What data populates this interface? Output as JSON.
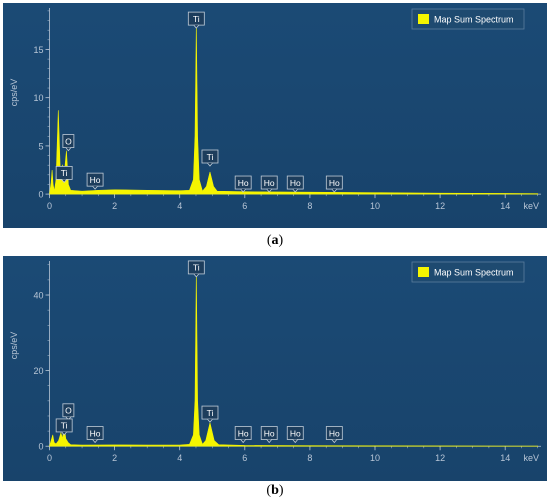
{
  "captions": [
    {
      "open": "(",
      "letter": "a",
      "close": ")"
    },
    {
      "open": "(",
      "letter": "b",
      "close": ")"
    }
  ],
  "colors": {
    "background": "#18436b",
    "spectrum": "#f5f500",
    "axis_text": "#b8c6d6",
    "label_box_bg": "#1d3d5c",
    "label_box_border": "#c0ccd8"
  },
  "chart_data": [
    {
      "type": "area",
      "panel": "a",
      "ylabel": "cps/eV",
      "xunit": "keV",
      "legend": {
        "label": "Map Sum Spectrum",
        "position": "top-right"
      },
      "grid": false,
      "xlim": [
        -0.2,
        15.1
      ],
      "ylim": [
        -0.3,
        19.3
      ],
      "xticks": [
        0,
        2,
        4,
        6,
        8,
        10,
        12,
        14
      ],
      "yticks": [
        0,
        5,
        10,
        15
      ],
      "series": [
        {
          "name": "Map Sum Spectrum",
          "points": [
            [
              0.0,
              0.0
            ],
            [
              0.05,
              1.2
            ],
            [
              0.08,
              2.5
            ],
            [
              0.11,
              1.0
            ],
            [
              0.15,
              0.3
            ],
            [
              0.2,
              1.5
            ],
            [
              0.27,
              8.7
            ],
            [
              0.33,
              2.5
            ],
            [
              0.4,
              3.0
            ],
            [
              0.45,
              2.0
            ],
            [
              0.52,
              4.5
            ],
            [
              0.58,
              1.0
            ],
            [
              0.65,
              0.4
            ],
            [
              1.0,
              0.3
            ],
            [
              1.5,
              0.4
            ],
            [
              2.0,
              0.45
            ],
            [
              3.0,
              0.4
            ],
            [
              4.0,
              0.35
            ],
            [
              4.3,
              0.4
            ],
            [
              4.42,
              1.5
            ],
            [
              4.47,
              6.0
            ],
            [
              4.51,
              17.6
            ],
            [
              4.55,
              6.0
            ],
            [
              4.6,
              1.5
            ],
            [
              4.7,
              0.3
            ],
            [
              4.82,
              0.8
            ],
            [
              4.93,
              2.3
            ],
            [
              5.04,
              0.8
            ],
            [
              5.15,
              0.3
            ],
            [
              6.0,
              0.25
            ],
            [
              8.0,
              0.2
            ],
            [
              10.0,
              0.15
            ],
            [
              12.0,
              0.1
            ],
            [
              15.0,
              0.05
            ]
          ]
        }
      ],
      "annotations": [
        {
          "text": "Ti",
          "x": 4.51,
          "y": 18.2
        },
        {
          "text": "Ti",
          "x": 4.93,
          "y": 3.9
        },
        {
          "text": "O",
          "x": 0.58,
          "y": 5.5
        },
        {
          "text": "Ti",
          "x": 0.45,
          "y": 2.2
        },
        {
          "text": "Ho",
          "x": 1.4,
          "y": 1.5
        },
        {
          "text": "Ho",
          "x": 5.95,
          "y": 1.2
        },
        {
          "text": "Ho",
          "x": 6.75,
          "y": 1.2
        },
        {
          "text": "Ho",
          "x": 7.55,
          "y": 1.2
        },
        {
          "text": "Ho",
          "x": 8.75,
          "y": 1.2
        }
      ]
    },
    {
      "type": "area",
      "panel": "b",
      "ylabel": "cps/eV",
      "xunit": "keV",
      "legend": {
        "label": "Map Sum Spectrum",
        "position": "top-right"
      },
      "grid": false,
      "xlim": [
        -0.2,
        15.1
      ],
      "ylim": [
        -1,
        49
      ],
      "xticks": [
        0,
        2,
        4,
        6,
        8,
        10,
        12,
        14
      ],
      "yticks": [
        0,
        20,
        40
      ],
      "series": [
        {
          "name": "Map Sum Spectrum",
          "points": [
            [
              0.0,
              0.0
            ],
            [
              0.05,
              1.5
            ],
            [
              0.1,
              3.0
            ],
            [
              0.14,
              1.0
            ],
            [
              0.2,
              0.6
            ],
            [
              0.28,
              1.5
            ],
            [
              0.35,
              3.5
            ],
            [
              0.4,
              2.0
            ],
            [
              0.45,
              5.5
            ],
            [
              0.5,
              2.0
            ],
            [
              0.57,
              1.0
            ],
            [
              0.65,
              0.4
            ],
            [
              1.0,
              0.3
            ],
            [
              2.0,
              0.35
            ],
            [
              3.0,
              0.3
            ],
            [
              4.0,
              0.3
            ],
            [
              4.3,
              0.5
            ],
            [
              4.42,
              3.0
            ],
            [
              4.47,
              12.0
            ],
            [
              4.51,
              46.0
            ],
            [
              4.55,
              12.0
            ],
            [
              4.6,
              3.0
            ],
            [
              4.7,
              0.5
            ],
            [
              4.8,
              1.5
            ],
            [
              4.93,
              6.2
            ],
            [
              5.06,
              1.5
            ],
            [
              5.2,
              0.4
            ],
            [
              6.0,
              0.2
            ],
            [
              8.0,
              0.15
            ],
            [
              10.0,
              0.1
            ],
            [
              15.0,
              0.05
            ]
          ]
        }
      ],
      "annotations": [
        {
          "text": "Ti",
          "x": 4.51,
          "y": 47.3
        },
        {
          "text": "Ti",
          "x": 4.93,
          "y": 8.9
        },
        {
          "text": "O",
          "x": 0.58,
          "y": 9.5
        },
        {
          "text": "Ti",
          "x": 0.45,
          "y": 5.5
        },
        {
          "text": "Ho",
          "x": 1.4,
          "y": 3.5
        },
        {
          "text": "Ho",
          "x": 5.95,
          "y": 3.5
        },
        {
          "text": "Ho",
          "x": 6.75,
          "y": 3.5
        },
        {
          "text": "Ho",
          "x": 7.55,
          "y": 3.5
        },
        {
          "text": "Ho",
          "x": 8.75,
          "y": 3.5
        }
      ]
    }
  ]
}
